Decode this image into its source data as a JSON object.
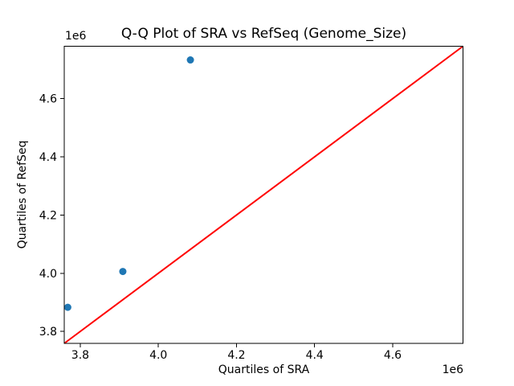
{
  "chart_data": {
    "type": "scatter",
    "title": "Q-Q Plot of SRA vs RefSeq (Genome_Size)",
    "xlabel": "Quartiles of SRA",
    "ylabel": "Quartiles of RefSeq",
    "x_offset_text": "1e6",
    "y_offset_text": "1e6",
    "xlim": [
      3759000,
      4780000
    ],
    "ylim": [
      3759000,
      4780000
    ],
    "xticks": [
      3800000,
      4000000,
      4200000,
      4400000,
      4600000
    ],
    "xtick_labels": [
      "3.8",
      "4.0",
      "4.2",
      "4.4",
      "4.6"
    ],
    "yticks": [
      3800000,
      4000000,
      4200000,
      4400000,
      4600000
    ],
    "ytick_labels": [
      "3.8",
      "4.0",
      "4.2",
      "4.4",
      "4.6"
    ],
    "grid": false,
    "legend": false,
    "axis_color": "#000000",
    "background": "#ffffff",
    "series": [
      {
        "name": "identity_line",
        "type": "line",
        "color": "#ff0000",
        "line_width": 2,
        "x": [
          3759000,
          4780000
        ],
        "y": [
          3759000,
          4780000
        ]
      },
      {
        "name": "quantile_points",
        "type": "scatter",
        "color": "#1f77b4",
        "marker_radius": 4.5,
        "x": [
          3768000,
          3909000,
          4082000
        ],
        "y": [
          3883000,
          4006000,
          4733000
        ]
      }
    ]
  }
}
